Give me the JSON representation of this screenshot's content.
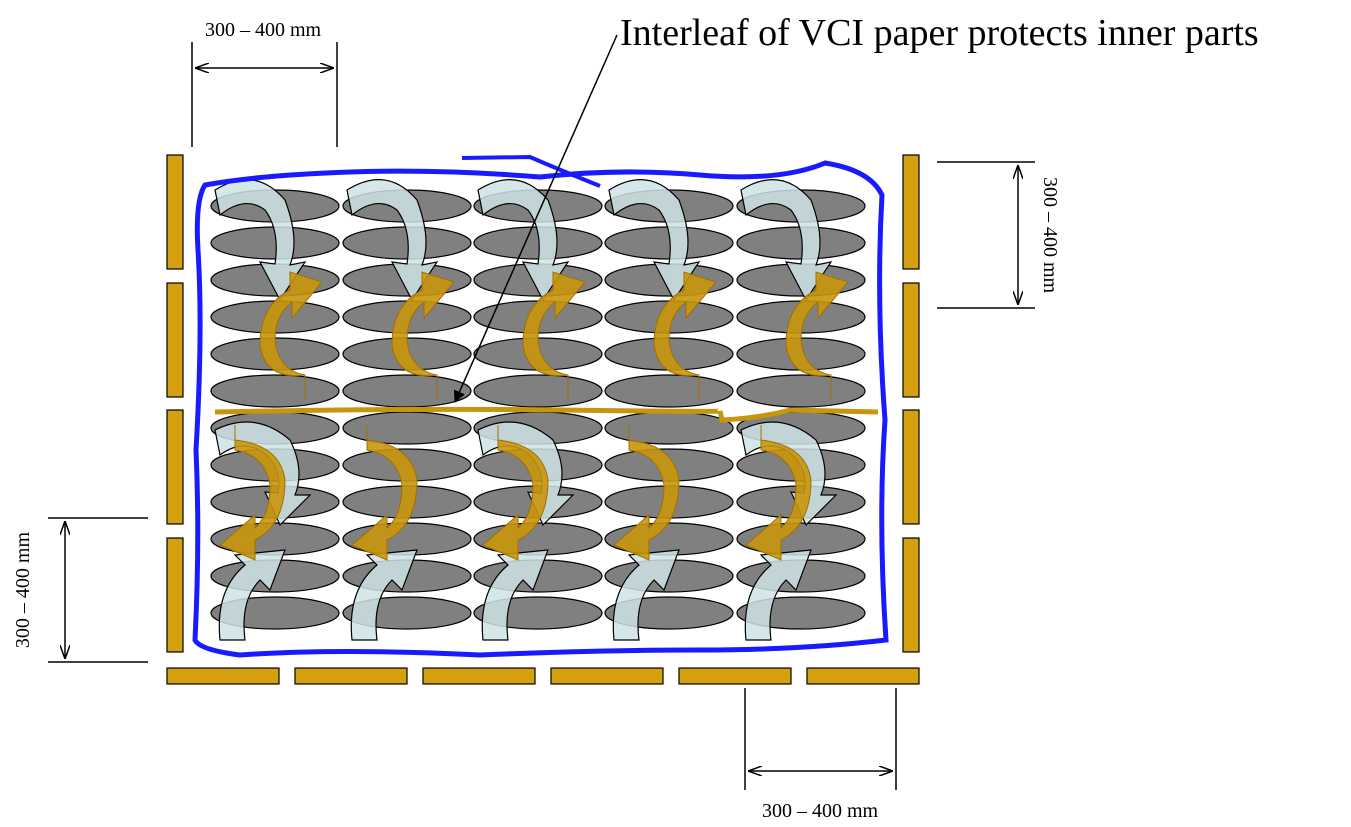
{
  "annotation": "Interleaf of VCI paper protects inner parts",
  "dimensions": {
    "top": "300 – 400 mm",
    "right": "300 – 400 mm",
    "left": "300 – 400 mm",
    "bottom": "300 – 400 mm"
  }
}
